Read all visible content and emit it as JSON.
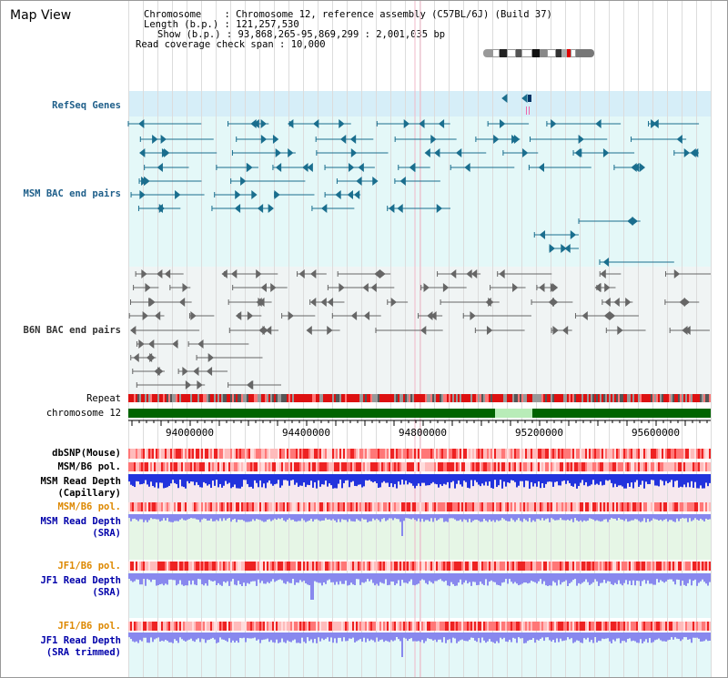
{
  "page": {
    "title": "Map View"
  },
  "info": {
    "chromosome_label": "Chromosome",
    "chromosome_value": ": Chromosome 12, reference assembly (C57BL/6J) (Build 37)",
    "length_label": "Length (b.p.)",
    "length_value": ": 121,257,530",
    "show_label": "Show (b.p.)",
    "show_value": ": 93,868,265-95,869,299 : 2,001,035 bp",
    "coverage_label": "Read coverage check span",
    "coverage_value": ": 10,000"
  },
  "tracks": {
    "refseq": "RefSeq Genes",
    "msm_bac": "MSM BAC end pairs",
    "b6n_bac": "B6N BAC end pairs",
    "repeat": "Repeat",
    "chromosome": "chromosome 12",
    "dbsnp": "dbSNP(Mouse)",
    "msm_b6_pol_1": "MSM/B6 pol.",
    "msm_read_depth_cap_1": "MSM Read Depth",
    "msm_read_depth_cap_2": "(Capillary)",
    "msm_b6_pol_2": "MSM/B6 pol.",
    "msm_read_depth_sra_1": "MSM Read Depth",
    "msm_read_depth_sra_2": "(SRA)",
    "jf1_b6_pol_1": "JF1/B6 pol.",
    "jf1_read_depth_sra_1": "JF1 Read Depth",
    "jf1_read_depth_sra_2": "(SRA)",
    "jf1_b6_pol_2": "JF1/B6 pol.",
    "jf1_read_depth_trim_1": "JF1 Read Depth",
    "jf1_read_depth_trim_2": "(SRA trimmed)"
  },
  "axis": {
    "ticks": [
      "94000000",
      "94400000",
      "94800000",
      "95200000",
      "95600000"
    ]
  },
  "colors": {
    "refseq_bg": "#d6eef8",
    "track_bg": "#e4f8f8",
    "feature_teal": "#1a6e8e",
    "feature_gray": "#666666",
    "chromosome_green": "#006400",
    "gap_green": "#b8ecb8",
    "depth_blue": "#2233dd",
    "depth_light_blue": "#8888ee",
    "pol_red": "#ee3333"
  }
}
